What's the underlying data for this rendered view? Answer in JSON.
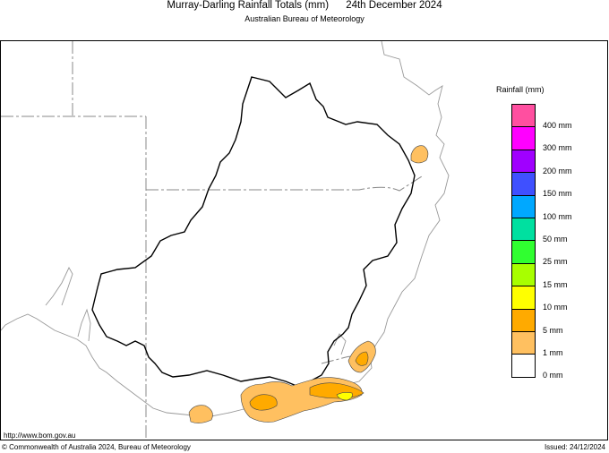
{
  "header": {
    "title": "Murray-Darling Rainfall Totals (mm)      24th December 2024",
    "subtitle": "Australian Bureau of Meteorology"
  },
  "legend": {
    "title": "Rainfall (mm)",
    "items": [
      {
        "label": "400 mm",
        "color": "#ff4fa0"
      },
      {
        "label": "300 mm",
        "color": "#ff00ff"
      },
      {
        "label": "200 mm",
        "color": "#a000ff"
      },
      {
        "label": "150 mm",
        "color": "#3f50ff"
      },
      {
        "label": "100 mm",
        "color": "#00a8ff"
      },
      {
        "label": "50 mm",
        "color": "#00e0a0"
      },
      {
        "label": "25 mm",
        "color": "#30ff30"
      },
      {
        "label": "15 mm",
        "color": "#a8ff00"
      },
      {
        "label": "10 mm",
        "color": "#ffff00"
      },
      {
        "label": "5 mm",
        "color": "#ffaa00"
      },
      {
        "label": "1 mm",
        "color": "#ffc060"
      },
      {
        "label": "0 mm",
        "color": "#ffffff"
      }
    ]
  },
  "footer": {
    "url": "http://www.bom.gov.au",
    "copyright": "© Commonwealth of Australia 2024, Bureau of Meteorology",
    "issued": "Issued: 24/12/2024"
  }
}
